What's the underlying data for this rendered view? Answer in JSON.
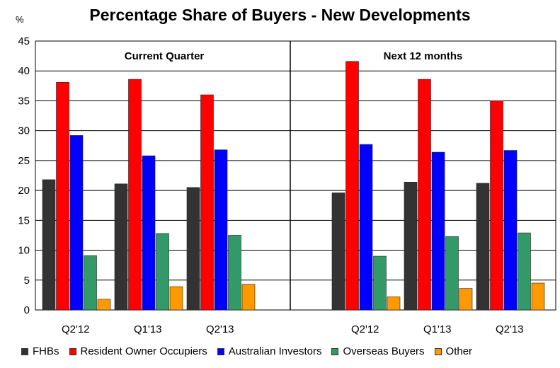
{
  "chart_data": {
    "type": "bar",
    "title": "Percentage Share of Buyers - New Developments",
    "ylabel": "%",
    "ylim": [
      0,
      45
    ],
    "yticks": [
      0,
      5,
      10,
      15,
      20,
      25,
      30,
      35,
      40,
      45
    ],
    "grid": true,
    "legend_position": "bottom",
    "panels": [
      {
        "label": "Current Quarter",
        "categories": [
          "Q2'12",
          "Q1'13",
          "Q2'13"
        ]
      },
      {
        "label": "Next 12 months",
        "categories": [
          "Q2'12",
          "Q1'13",
          "Q2'13"
        ]
      }
    ],
    "series": [
      {
        "name": "FHBs",
        "color": "#333333",
        "values": [
          [
            21.8,
            21.1,
            20.5
          ],
          [
            19.6,
            21.4,
            21.2
          ]
        ]
      },
      {
        "name": "Resident Owner Occupiers",
        "color": "#ff0000",
        "values": [
          [
            38.1,
            38.6,
            36.0
          ],
          [
            41.6,
            38.6,
            35.0
          ]
        ]
      },
      {
        "name": "Australian Investors",
        "color": "#0000ff",
        "values": [
          [
            29.2,
            25.8,
            26.8
          ],
          [
            27.7,
            26.4,
            26.7
          ]
        ]
      },
      {
        "name": "Overseas Buyers",
        "color": "#339966",
        "values": [
          [
            9.1,
            12.8,
            12.5
          ],
          [
            9.0,
            12.3,
            12.9
          ]
        ]
      },
      {
        "name": "Other",
        "color": "#ff9900",
        "values": [
          [
            1.8,
            3.9,
            4.3
          ],
          [
            2.2,
            3.6,
            4.5
          ]
        ]
      }
    ]
  }
}
